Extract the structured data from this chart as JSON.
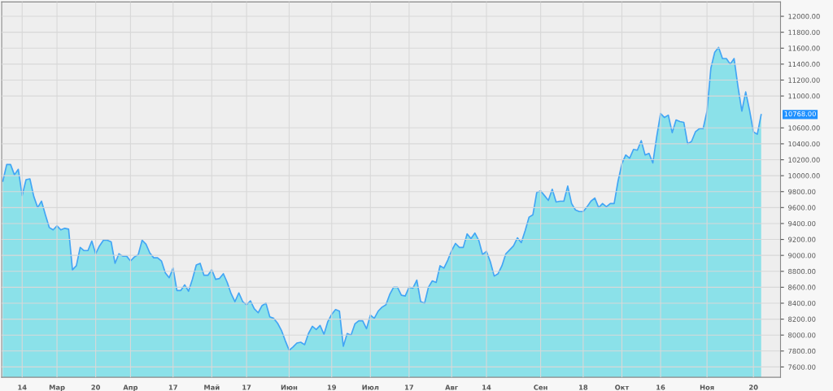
{
  "chart_data": {
    "type": "area",
    "categories": [
      null,
      null,
      null,
      null,
      null,
      "14",
      null,
      null,
      null,
      null,
      null,
      null,
      null,
      null,
      "Мар",
      null,
      null,
      null,
      null,
      null,
      null,
      null,
      null,
      null,
      "20",
      null,
      null,
      null,
      null,
      null,
      null,
      null,
      null,
      "Апр",
      null,
      null,
      null,
      null,
      null,
      null,
      null,
      null,
      null,
      null,
      "17",
      null,
      null,
      null,
      null,
      null,
      null,
      null,
      null,
      null,
      "Май",
      null,
      null,
      null,
      null,
      null,
      null,
      null,
      null,
      "17",
      null,
      null,
      null,
      null,
      null,
      null,
      null,
      null,
      null,
      null,
      "Июн",
      null,
      null,
      null,
      null,
      null,
      null,
      null,
      null,
      null,
      null,
      "19",
      null,
      null,
      null,
      null,
      null,
      null,
      null,
      null,
      null,
      "Июл",
      null,
      null,
      null,
      null,
      null,
      null,
      null,
      null,
      null,
      "17",
      null,
      null,
      null,
      null,
      null,
      null,
      null,
      null,
      null,
      null,
      "Авг",
      null,
      null,
      null,
      null,
      null,
      null,
      null,
      null,
      "14",
      null,
      null,
      null,
      null,
      null,
      null,
      null,
      null,
      null,
      null,
      null,
      null,
      null,
      "Сен",
      null,
      null,
      null,
      null,
      null,
      null,
      null,
      null,
      null,
      null,
      "18",
      null,
      null,
      null,
      null,
      null,
      null,
      null,
      null,
      null,
      "Окт",
      null,
      null,
      null,
      null,
      null,
      null,
      null,
      null,
      null,
      "16",
      null,
      null,
      null,
      null,
      null,
      null,
      null,
      null,
      null,
      null,
      null,
      "Ноя",
      null,
      null,
      null,
      null,
      null,
      null,
      null,
      null,
      null,
      null,
      null,
      "20",
      null,
      null
    ],
    "series": [
      {
        "color": "#42a5f5",
        "values": [
          9930,
          10140,
          10140,
          10010,
          10080,
          9750,
          9950,
          9960,
          9740,
          9600,
          9680,
          9510,
          9350,
          9320,
          9370,
          9320,
          9340,
          9330,
          8820,
          8870,
          9100,
          9060,
          9060,
          9180,
          9020,
          9120,
          9190,
          9190,
          9170,
          8900,
          9020,
          8990,
          8990,
          8930,
          8980,
          9010,
          9190,
          9140,
          9030,
          8970,
          8970,
          8930,
          8780,
          8720,
          8840,
          8560,
          8560,
          8630,
          8550,
          8700,
          8880,
          8900,
          8750,
          8750,
          8820,
          8700,
          8710,
          8770,
          8660,
          8520,
          8420,
          8530,
          8420,
          8380,
          8430,
          8330,
          8280,
          8370,
          8400,
          8230,
          8210,
          8150,
          8060,
          7930,
          7810,
          7850,
          7900,
          7910,
          7880,
          8020,
          8110,
          8070,
          8120,
          8010,
          8170,
          8260,
          8320,
          8300,
          7860,
          8020,
          8000,
          8140,
          8180,
          8180,
          8080,
          8250,
          8210,
          8300,
          8350,
          8380,
          8510,
          8600,
          8600,
          8500,
          8490,
          8600,
          8590,
          8690,
          8420,
          8400,
          8600,
          8680,
          8660,
          8870,
          8840,
          8940,
          9060,
          9150,
          9100,
          9100,
          9270,
          9210,
          9280,
          9190,
          9010,
          9050,
          8920,
          8740,
          8770,
          8870,
          9020,
          9070,
          9120,
          9220,
          9160,
          9310,
          9480,
          9510,
          9790,
          9810,
          9750,
          9690,
          9830,
          9670,
          9680,
          9680,
          9870,
          9650,
          9570,
          9550,
          9550,
          9610,
          9680,
          9720,
          9600,
          9650,
          9610,
          9650,
          9650,
          9930,
          10150,
          10260,
          10220,
          10330,
          10320,
          10440,
          10260,
          10280,
          10160,
          10490,
          10780,
          10730,
          10760,
          10540,
          10700,
          10680,
          10670,
          10400,
          10430,
          10550,
          10590,
          10590,
          10810,
          11350,
          11550,
          11610,
          11470,
          11470,
          11400,
          11470,
          11120,
          10810,
          11050,
          10820,
          10550,
          10520,
          10768
        ]
      }
    ],
    "ylim": [
      7470,
      12180
    ],
    "yticks": [
      {
        "value": 7600,
        "label": "7600.00"
      },
      {
        "value": 7800,
        "label": "7800.00"
      },
      {
        "value": 8000,
        "label": "8000.00"
      },
      {
        "value": 8200,
        "label": "8200.00"
      },
      {
        "value": 8400,
        "label": "8400.00"
      },
      {
        "value": 8600,
        "label": "8600.00"
      },
      {
        "value": 8800,
        "label": "8800.00"
      },
      {
        "value": 9000,
        "label": "9000.00"
      },
      {
        "value": 9200,
        "label": "9200.00"
      },
      {
        "value": 9400,
        "label": "9400.00"
      },
      {
        "value": 9600,
        "label": "9600.00"
      },
      {
        "value": 9800,
        "label": "9800.00"
      },
      {
        "value": 10000,
        "label": "10000.00"
      },
      {
        "value": 10200,
        "label": "10200.00"
      },
      {
        "value": 10400,
        "label": "10400.00"
      },
      {
        "value": 10600,
        "label": "10600.00"
      },
      {
        "value": 11000,
        "label": "11000.00"
      },
      {
        "value": 11200,
        "label": "11200.00"
      },
      {
        "value": 11400,
        "label": "11400.00"
      },
      {
        "value": 11600,
        "label": "11600.00"
      },
      {
        "value": 11800,
        "label": "11800.00"
      },
      {
        "value": 12000,
        "label": "12000.00"
      }
    ],
    "annotations": [
      "10768.00"
    ],
    "grid": true
  }
}
